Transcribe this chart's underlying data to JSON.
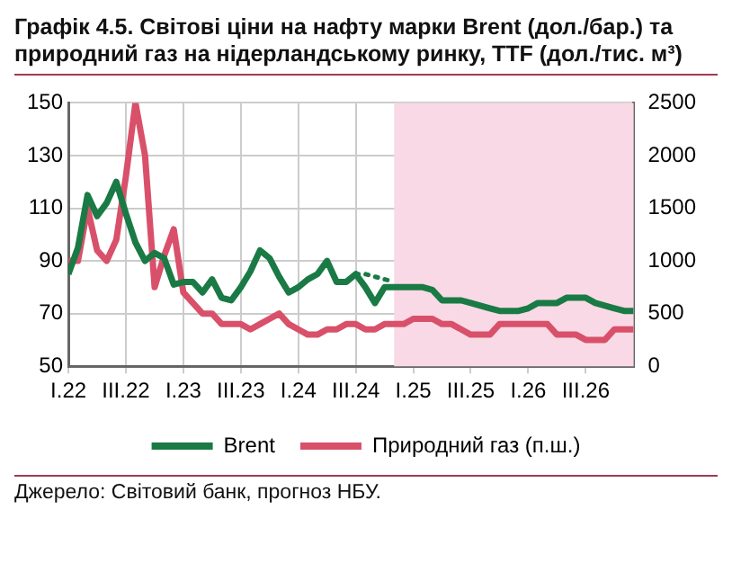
{
  "chart_data": {
    "type": "line",
    "title": "Графік 4.5. Світові ціни на нафту марки Brent (дол./бар.) та природний газ на нідерландському ринку, TTF (дол./тис. м³)",
    "x": [
      "2022-01",
      "2022-02",
      "2022-03",
      "2022-04",
      "2022-05",
      "2022-06",
      "2022-07",
      "2022-08",
      "2022-09",
      "2022-10",
      "2022-11",
      "2022-12",
      "2023-01",
      "2023-02",
      "2023-03",
      "2023-04",
      "2023-05",
      "2023-06",
      "2023-07",
      "2023-08",
      "2023-09",
      "2023-10",
      "2023-11",
      "2023-12",
      "2024-01",
      "2024-02",
      "2024-03",
      "2024-04",
      "2024-05",
      "2024-06",
      "2024-07",
      "2024-08",
      "2024-09",
      "2024-10",
      "2024-11",
      "2024-12",
      "2025-01",
      "2025-02",
      "2025-03",
      "2025-04",
      "2025-05",
      "2025-06",
      "2025-07",
      "2025-08",
      "2025-09",
      "2025-10",
      "2025-11",
      "2025-12",
      "2026-01",
      "2026-02",
      "2026-03",
      "2026-04",
      "2026-05",
      "2026-06",
      "2026-07",
      "2026-08",
      "2026-09",
      "2026-10",
      "2026-11",
      "2026-12"
    ],
    "series": [
      {
        "name": "Brent",
        "color": "#1a7a45",
        "values": [
          85,
          95,
          115,
          107,
          112,
          120,
          108,
          97,
          90,
          93,
          91,
          81,
          82,
          82,
          78,
          83,
          76,
          75,
          80,
          86,
          94,
          91,
          84,
          78,
          80,
          83,
          85,
          90,
          82,
          82,
          85,
          80,
          74,
          80,
          80,
          80,
          80,
          80,
          79,
          75,
          75,
          75,
          74,
          73,
          72,
          71,
          71,
          71,
          72,
          74,
          74,
          74,
          76,
          76,
          76,
          74,
          73,
          72,
          71,
          71
        ]
      },
      {
        "name": "Природний газ (п.ш.)",
        "color": "#d9506a",
        "axis": "y2",
        "values": [
          1000,
          1000,
          1500,
          1100,
          1000,
          1200,
          1800,
          2500,
          2000,
          750,
          1050,
          1300,
          700,
          600,
          500,
          500,
          400,
          400,
          400,
          350,
          400,
          450,
          500,
          400,
          350,
          300,
          300,
          350,
          350,
          400,
          400,
          350,
          350,
          400,
          400,
          400,
          450,
          450,
          450,
          400,
          400,
          350,
          300,
          300,
          300,
          400,
          400,
          400,
          400,
          400,
          400,
          300,
          300,
          300,
          250,
          250,
          250,
          350,
          350,
          350
        ]
      },
      {
        "color": "#1a7a45",
        "line_style": "dotted",
        "x": [
          "2024-07",
          "2024-08",
          "2024-09",
          "2024-10",
          "2024-11"
        ],
        "values": [
          85,
          85,
          84,
          83,
          82
        ]
      }
    ],
    "xlim": [
      "2022-01",
      "2026-12"
    ],
    "xticks": [
      {
        "value": "2022-01",
        "label": "I.22"
      },
      {
        "value": "2022-07",
        "label": "III.22"
      },
      {
        "value": "2023-01",
        "label": "I.23"
      },
      {
        "value": "2023-07",
        "label": "III.23"
      },
      {
        "value": "2024-01",
        "label": "I.24"
      },
      {
        "value": "2024-07",
        "label": "III.24"
      },
      {
        "value": "2025-01",
        "label": "I.25"
      },
      {
        "value": "2025-07",
        "label": "III.25"
      },
      {
        "value": "2026-01",
        "label": "I.26"
      },
      {
        "value": "2026-07",
        "label": "III.26"
      }
    ],
    "ylim": [
      50,
      150
    ],
    "yticks": [
      50,
      70,
      90,
      110,
      130,
      150
    ],
    "y2lim": [
      0,
      2500
    ],
    "y2ticks": [
      0,
      500,
      1000,
      1500,
      2000,
      2500
    ],
    "bands": [
      {
        "axis": "x",
        "from": "2024-11",
        "to": "2026-12",
        "color": "#f9d9e6"
      }
    ],
    "grid": true,
    "legend": "bottom",
    "marker": "none",
    "line_style": "solid",
    "annotations": [
      "Джерело: Світовий банк, прогноз НБУ."
    ]
  }
}
